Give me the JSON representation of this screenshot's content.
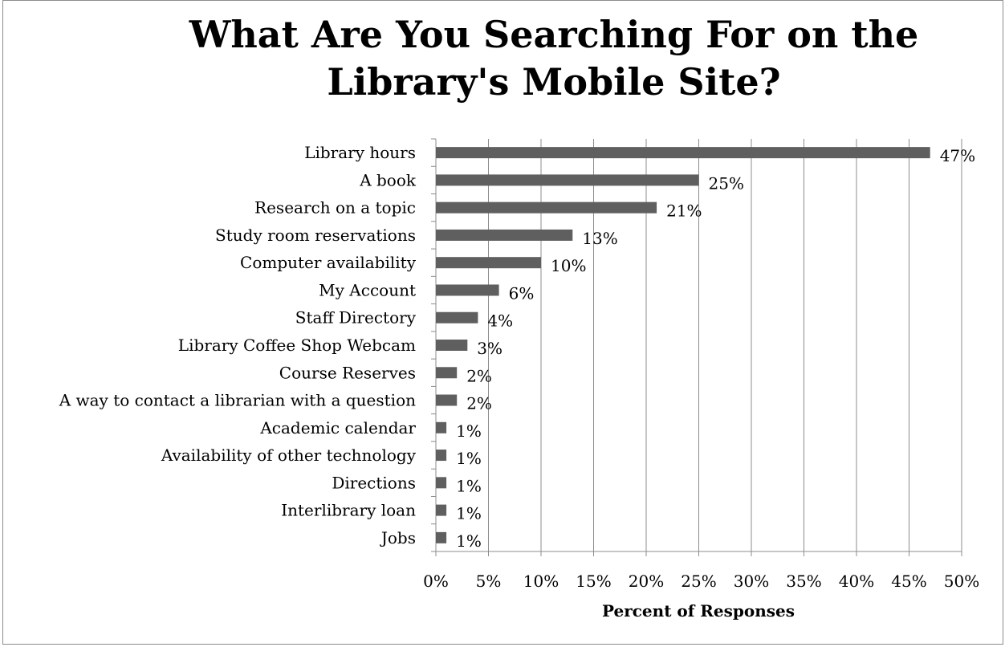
{
  "chart_data": {
    "type": "bar",
    "orientation": "horizontal",
    "title": "What Are You Searching For on the Library's Mobile Site?",
    "xlabel": "Percent of Responses",
    "ylabel": "",
    "xlim": [
      0,
      50
    ],
    "x_ticks": [
      "0%",
      "5%",
      "10%",
      "15%",
      "20%",
      "25%",
      "30%",
      "35%",
      "40%",
      "45%",
      "50%"
    ],
    "grid": "vertical",
    "bar_color": "#5f5f5f",
    "categories": [
      "Library hours",
      "A book",
      "Research on a topic",
      "Study room reservations",
      "Computer availability",
      "My Account",
      "Staff Directory",
      "Library Coffee Shop Webcam",
      "Course Reserves",
      "A way to contact a librarian with a question",
      "Academic calendar",
      "Availability of other technology",
      "Directions",
      "Interlibrary loan",
      "Jobs"
    ],
    "values": [
      47,
      25,
      21,
      13,
      10,
      6,
      4,
      3,
      2,
      2,
      1,
      1,
      1,
      1,
      1
    ],
    "data_labels": [
      "47%",
      "25%",
      "21%",
      "13%",
      "10%",
      "6%",
      "4%",
      "3%",
      "2%",
      "2%",
      "1%",
      "1%",
      "1%",
      "1%",
      "1%"
    ]
  }
}
